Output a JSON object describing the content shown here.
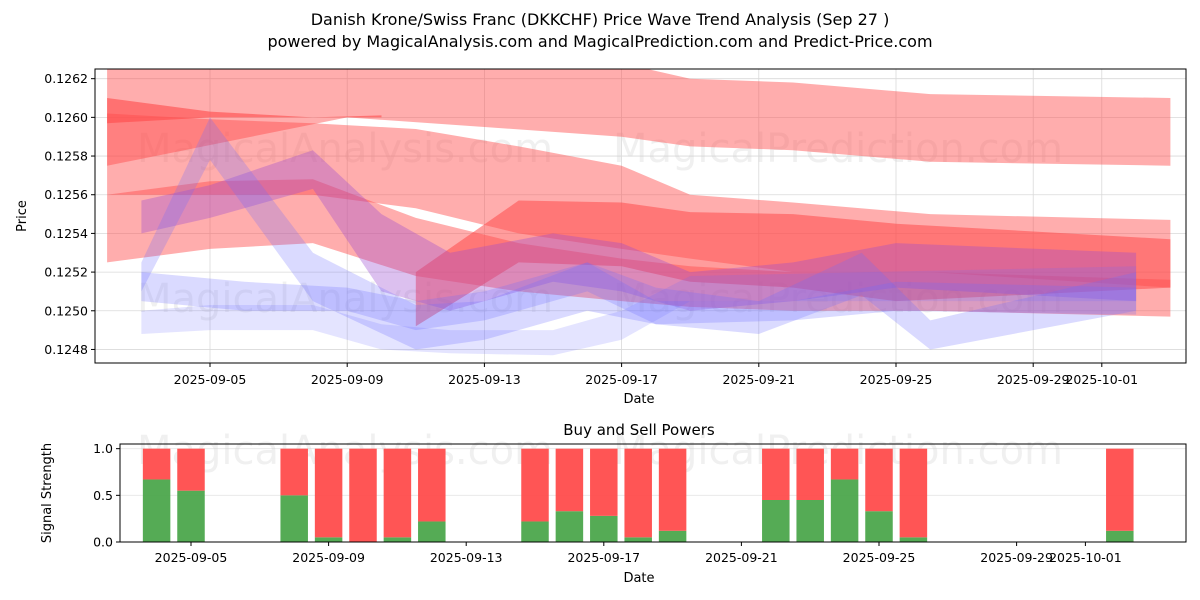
{
  "header": {
    "title": "Danish Krone/Swiss Franc (DKKCHF) Price Wave Trend Analysis (Sep 27 )",
    "subtitle": "powered by MagicalAnalysis.com and MagicalPrediction.com and Predict-Price.com"
  },
  "watermarks": [
    "MagicalAnalysis.com",
    "MagicalPrediction.com"
  ],
  "colors": {
    "red_band": "#ff4a4a",
    "blue_band": "#6a6aff",
    "buy": "#4ca64c",
    "sell": "#ff4c4c",
    "grid": "#d9d9d9"
  },
  "chart_data": [
    {
      "type": "area",
      "title": "",
      "xlabel": "Date",
      "ylabel": "Price",
      "ylim": [
        0.12473,
        0.12625
      ],
      "xlim": [
        "2025-09-01.6",
        "2025-10-03.4"
      ],
      "grid": true,
      "x_ticks": [
        "2025-09-05",
        "2025-09-09",
        "2025-09-13",
        "2025-09-17",
        "2025-09-21",
        "2025-09-25",
        "2025-09-29",
        "2025-10-01"
      ],
      "y_ticks": [
        "0.1248",
        "0.1250",
        "0.1252",
        "0.1254",
        "0.1256",
        "0.1258",
        "0.1260",
        "0.1262"
      ],
      "series": [
        {
          "name": "red-upper-band",
          "color": "red",
          "opacity": 0.45,
          "x": [
            "2025-09-02",
            "2025-09-09",
            "2025-09-13",
            "2025-09-17",
            "2025-09-19",
            "2025-09-22",
            "2025-09-26",
            "2025-10-03"
          ],
          "upper": [
            0.1264,
            0.12636,
            0.12633,
            0.12628,
            0.1262,
            0.12618,
            0.12612,
            0.1261
          ],
          "lower": [
            0.12575,
            0.126,
            0.12595,
            0.1259,
            0.12585,
            0.12583,
            0.12577,
            0.12575
          ]
        },
        {
          "name": "red-mid-band",
          "color": "red",
          "opacity": 0.45,
          "x": [
            "2025-09-02",
            "2025-09-05",
            "2025-09-08",
            "2025-09-11",
            "2025-09-14",
            "2025-09-17",
            "2025-09-19",
            "2025-09-22",
            "2025-09-26",
            "2025-10-03"
          ],
          "upper": [
            0.12602,
            0.12599,
            0.12597,
            0.12594,
            0.12585,
            0.12575,
            0.1256,
            0.12556,
            0.1255,
            0.12547
          ],
          "lower": [
            0.1256,
            0.1256,
            0.1256,
            0.12553,
            0.1254,
            0.12532,
            0.12527,
            0.1252,
            0.1252,
            0.12512
          ]
        },
        {
          "name": "red-thin-trend",
          "color": "red",
          "opacity": 0.6,
          "x": [
            "2025-09-02",
            "2025-09-05",
            "2025-09-08",
            "2025-09-10"
          ],
          "upper": [
            0.1261,
            0.12603,
            0.126,
            0.12601
          ],
          "lower": [
            0.12597,
            0.126,
            0.126,
            0.126
          ]
        },
        {
          "name": "red-lower-band",
          "color": "red",
          "opacity": 0.45,
          "x": [
            "2025-09-02",
            "2025-09-05",
            "2025-09-08",
            "2025-09-11",
            "2025-09-14",
            "2025-09-17",
            "2025-09-19",
            "2025-09-22",
            "2025-09-26",
            "2025-10-03"
          ],
          "upper": [
            0.1256,
            0.12567,
            0.12568,
            0.12548,
            0.12535,
            0.12527,
            0.12523,
            0.1252,
            0.1252,
            0.12516
          ],
          "lower": [
            0.12525,
            0.12532,
            0.12535,
            0.12518,
            0.1251,
            0.12505,
            0.12502,
            0.125,
            0.125,
            0.12497
          ]
        },
        {
          "name": "red-strong-band",
          "color": "red",
          "opacity": 0.55,
          "x": [
            "2025-09-11",
            "2025-09-14",
            "2025-09-17",
            "2025-09-19",
            "2025-09-22",
            "2025-09-25",
            "2025-10-03"
          ],
          "upper": [
            0.1252,
            0.12557,
            0.12556,
            0.12551,
            0.1255,
            0.12545,
            0.12537
          ],
          "lower": [
            0.12492,
            0.12525,
            0.12523,
            0.12515,
            0.12512,
            0.12505,
            0.12512
          ]
        },
        {
          "name": "purple-wave-1",
          "color": "purple",
          "opacity": 0.35,
          "x": [
            "2025-09-03",
            "2025-09-05",
            "2025-09-08",
            "2025-09-10",
            "2025-09-12",
            "2025-09-15",
            "2025-09-17",
            "2025-09-19",
            "2025-09-22",
            "2025-09-25",
            "2025-10-02"
          ],
          "upper": [
            0.12557,
            0.12565,
            0.12583,
            0.1255,
            0.1253,
            0.1254,
            0.12535,
            0.1252,
            0.12525,
            0.12535,
            0.1253
          ],
          "lower": [
            0.1254,
            0.12548,
            0.12563,
            0.1251,
            0.125,
            0.12515,
            0.1251,
            0.125,
            0.12505,
            0.12512,
            0.12505
          ]
        },
        {
          "name": "blue-wave-1",
          "color": "blue",
          "opacity": 0.25,
          "x": [
            "2025-09-03",
            "2025-09-05",
            "2025-09-08",
            "2025-09-11",
            "2025-09-13",
            "2025-09-16",
            "2025-09-18",
            "2025-09-21",
            "2025-09-24",
            "2025-09-26",
            "2025-10-02"
          ],
          "upper": [
            0.12525,
            0.126,
            0.1253,
            0.12503,
            0.12505,
            0.12525,
            0.12512,
            0.12505,
            0.1253,
            0.12495,
            0.1252
          ],
          "lower": [
            0.1251,
            0.12578,
            0.12505,
            0.1248,
            0.12485,
            0.125,
            0.12493,
            0.12488,
            0.12508,
            0.1248,
            0.125
          ]
        },
        {
          "name": "blue-wave-2",
          "color": "blue",
          "opacity": 0.18,
          "x": [
            "2025-09-03",
            "2025-09-05",
            "2025-09-08",
            "2025-09-10",
            "2025-09-12",
            "2025-09-15",
            "2025-09-17",
            "2025-09-19",
            "2025-10-02"
          ],
          "upper": [
            0.125,
            0.12503,
            0.12503,
            0.12493,
            0.1249,
            0.1249,
            0.125,
            0.12518,
            0.12523
          ],
          "lower": [
            0.12488,
            0.1249,
            0.1249,
            0.1248,
            0.12478,
            0.12477,
            0.12485,
            0.12505,
            0.12505
          ]
        },
        {
          "name": "blue-wave-3",
          "color": "blue",
          "opacity": 0.25,
          "x": [
            "2025-09-03",
            "2025-09-06",
            "2025-09-09",
            "2025-09-11",
            "2025-09-13",
            "2025-09-16",
            "2025-09-18",
            "2025-09-22",
            "2025-09-25",
            "2025-10-02"
          ],
          "upper": [
            0.1252,
            0.12515,
            0.12512,
            0.12505,
            0.1251,
            0.12525,
            0.12505,
            0.12505,
            0.12515,
            0.12512
          ],
          "lower": [
            0.12505,
            0.125,
            0.125,
            0.1249,
            0.12495,
            0.1251,
            0.12493,
            0.12495,
            0.125,
            0.12498
          ]
        }
      ]
    },
    {
      "type": "bar",
      "title": "Buy and Sell Powers",
      "xlabel": "Date",
      "ylabel": "Signal Strength",
      "ylim": [
        0,
        1.05
      ],
      "y_ticks": [
        "0.0",
        "0.5",
        "1.0"
      ],
      "x_ticks": [
        "2025-09-05",
        "2025-09-09",
        "2025-09-13",
        "2025-09-17",
        "2025-09-21",
        "2025-09-25",
        "2025-09-29",
        "2025-10-01"
      ],
      "grid": true,
      "categories": [
        "2025-09-04",
        "2025-09-05",
        "2025-09-08",
        "2025-09-09",
        "2025-09-10",
        "2025-09-11",
        "2025-09-12",
        "2025-09-15",
        "2025-09-16",
        "2025-09-17",
        "2025-09-18",
        "2025-09-19",
        "2025-09-22",
        "2025-09-23",
        "2025-09-24",
        "2025-09-25",
        "2025-09-26",
        "2025-10-02"
      ],
      "series": [
        {
          "name": "Buy",
          "color": "green",
          "values": [
            0.67,
            0.55,
            0.5,
            0.05,
            0.0,
            0.05,
            0.22,
            0.22,
            0.33,
            0.28,
            0.05,
            0.12,
            0.45,
            0.45,
            0.67,
            0.33,
            0.05,
            0.12
          ]
        },
        {
          "name": "Sell",
          "color": "red",
          "values": [
            0.33,
            0.45,
            0.5,
            0.95,
            1.0,
            0.95,
            0.78,
            0.78,
            0.67,
            0.72,
            0.95,
            0.88,
            0.55,
            0.55,
            0.33,
            0.67,
            0.95,
            0.88
          ]
        }
      ]
    }
  ]
}
